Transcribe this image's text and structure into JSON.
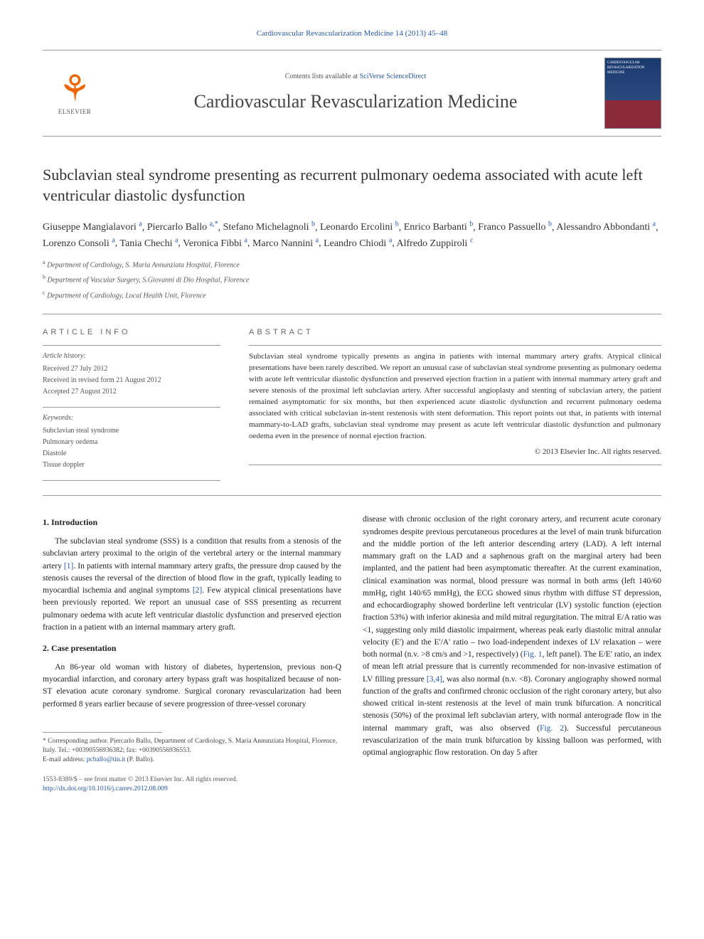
{
  "top_link": {
    "prefix": "",
    "journal": "Cardiovascular Revascularization Medicine 14 (2013) 45–48"
  },
  "header": {
    "contents_prefix": "Contents lists available at ",
    "contents_link": "SciVerse ScienceDirect",
    "journal_name": "Cardiovascular Revascularization Medicine",
    "elsevier": "ELSEVIER",
    "cover_text": "CARDIOVASCULAR REVASCULARIZATION MEDICINE"
  },
  "title": "Subclavian steal syndrome presenting as recurrent pulmonary oedema associated with acute left ventricular diastolic dysfunction",
  "authors": [
    {
      "name": "Giuseppe Mangialavori",
      "aff": "a"
    },
    {
      "name": "Piercarlo Ballo",
      "aff": "a,*"
    },
    {
      "name": "Stefano Michelagnoli",
      "aff": "b"
    },
    {
      "name": "Leonardo Ercolini",
      "aff": "b"
    },
    {
      "name": "Enrico Barbanti",
      "aff": "b"
    },
    {
      "name": "Franco Passuello",
      "aff": "b"
    },
    {
      "name": "Alessandro Abbondanti",
      "aff": "a"
    },
    {
      "name": "Lorenzo Consoli",
      "aff": "a"
    },
    {
      "name": "Tania Chechi",
      "aff": "a"
    },
    {
      "name": "Veronica Fibbi",
      "aff": "a"
    },
    {
      "name": "Marco Nannini",
      "aff": "a"
    },
    {
      "name": "Leandro Chiodi",
      "aff": "a"
    },
    {
      "name": "Alfredo Zuppiroli",
      "aff": "c"
    }
  ],
  "affiliations": [
    {
      "sup": "a",
      "text": "Department of Cardiology, S. Maria Annunziata Hospital, Florence"
    },
    {
      "sup": "b",
      "text": "Department of Vascular Surgery, S.Giovanni di Dio Hospital, Florence"
    },
    {
      "sup": "c",
      "text": "Department of Cardiology, Local Health Unit, Florence"
    }
  ],
  "article_info": {
    "heading": "ARTICLE INFO",
    "history_label": "Article history:",
    "received": "Received 27 July 2012",
    "revised": "Received in revised form 21 August 2012",
    "accepted": "Accepted 27 August 2012",
    "keywords_label": "Keywords:",
    "keywords": [
      "Subclavian steal syndrome",
      "Pulmonary oedema",
      "Diastole",
      "Tissue doppler"
    ]
  },
  "abstract": {
    "heading": "ABSTRACT",
    "text": "Subclavian steal syndrome typically presents as angina in patients with internal mammary artery grafts. Atypical clinical presentations have been rarely described. We report an unusual case of subclavian steal syndrome presenting as pulmonary oedema with acute left ventricular diastolic dysfunction and preserved ejection fraction in a patient with internal mammary artery graft and severe stenosis of the proximal left subclavian artery. After successful angioplasty and stenting of subclavian artery, the patient remained asymptomatic for six months, but then experienced acute diastolic dysfunction and recurrent pulmonary oedema associated with critical subclavian in-stent restenosis with stent deformation. This report points out that, in patients with internal mammary-to-LAD grafts, subclavian steal syndrome may present as acute left ventricular diastolic dysfunction and pulmonary oedema even in the presence of normal ejection fraction.",
    "copyright": "© 2013 Elsevier Inc. All rights reserved."
  },
  "sections": {
    "intro_heading": "1. Introduction",
    "intro_p1": "The subclavian steal syndrome (SSS) is a condition that results from a stenosis of the subclavian artery proximal to the origin of the vertebral artery or the internal mammary artery [1]. In patients with internal mammary artery grafts, the pressure drop caused by the stenosis causes the reversal of the direction of blood flow in the graft, typically leading to myocardial ischemia and anginal symptoms [2]. Few atypical clinical presentations have been previously reported. We report an unusual case of SSS presenting as recurrent pulmonary oedema with acute left ventricular diastolic dysfunction and preserved ejection fraction in a patient with an internal mammary artery graft.",
    "case_heading": "2. Case presentation",
    "case_p1": "An 86-year old woman with history of diabetes, hypertension, previous non-Q myocardial infarction, and coronary artery bypass graft was hospitalized because of non-ST elevation acute coronary syndrome. Surgical coronary revascularization had been performed 8 years earlier because of severe progression of three-vessel coronary",
    "case_p2": "disease with chronic occlusion of the right coronary artery, and recurrent acute coronary syndromes despite previous percutaneous procedures at the level of main trunk bifurcation and the middle portion of the left anterior descending artery (LAD). A left internal mammary graft on the LAD and a saphenous graft on the marginal artery had been implanted, and the patient had been asymptomatic thereafter. At the current examination, clinical examination was normal, blood pressure was normal in both arms (left 140/60 mmHg, right 140/65 mmHg), the ECG showed sinus rhythm with diffuse ST depression, and echocardiography showed borderline left ventricular (LV) systolic function (ejection fraction 53%) with inferior akinesia and mild mitral regurgitation. The mitral E/A ratio was <1, suggesting only mild diastolic impairment, whereas peak early diastolic mitral annular velocity (E') and the E'/A' ratio – two load-independent indexes of LV relaxation – were both normal (n.v. >8 cm/s and >1, respectively) (Fig. 1, left panel). The E/E' ratio, an index of mean left atrial pressure that is currently recommended for non-invasive estimation of LV filling pressure [3,4], was also normal (n.v. <8). Coronary angiography showed normal function of the grafts and confirmed chronic occlusion of the right coronary artery, but also showed critical in-stent restenosis at the level of main trunk bifurcation. A noncritical stenosis (50%) of the proximal left subclavian artery, with normal anterograde flow in the internal mammary graft, was also observed (Fig. 2). Successful percutaneous revascularization of the main trunk bifurcation by kissing balloon was performed, with optimal angiographic flow restoration. On day 5 after"
  },
  "footnote": {
    "corr": "* Corresponding author. Piercarlo Ballo, Department of Cardiology, S. Maria Annunziata Hospital, Florence, Italy. Tel.: +00390556936382; fax: +00390556936553.",
    "email_label": "E-mail address: ",
    "email": "pcballo@tin.it",
    "email_suffix": " (P. Ballo)."
  },
  "footer": {
    "line1": "1553-8389/$ – see front matter © 2013 Elsevier Inc. All rights reserved.",
    "doi": "http://dx.doi.org/10.1016/j.carrev.2012.08.009"
  },
  "colors": {
    "link": "#2456a6",
    "text": "#222222",
    "muted": "#555555",
    "rule": "#999999",
    "elsevier_orange": "#eb6500"
  },
  "typography": {
    "body_pt": 11.5,
    "title_pt": 22,
    "journal_pt": 26,
    "abstract_pt": 11,
    "footnote_pt": 9.5
  }
}
